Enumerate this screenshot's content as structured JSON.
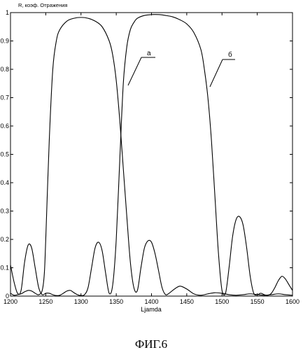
{
  "figure": {
    "caption": "ФИГ.6"
  },
  "chart_data": {
    "type": "line",
    "title": "",
    "ylabel": "R, коэф. Отражения",
    "xlabel": "Ljamda",
    "xlim": [
      1200,
      1600
    ],
    "ylim": [
      0,
      1
    ],
    "x_ticks": [
      "1200",
      "1250",
      "1300",
      "1350",
      "1400",
      "1450",
      "1500",
      "1550",
      "1600"
    ],
    "y_ticks": [
      "0",
      "0.1",
      "0.2",
      "0.3",
      "0.4",
      "0.5",
      "0.6",
      "0.7",
      "0.8",
      "0.9",
      "1"
    ],
    "grid": false,
    "series": [
      {
        "name": "а",
        "x": [
          1200,
          1205,
          1210,
          1215,
          1220,
          1225,
          1230,
          1235,
          1240,
          1245,
          1248,
          1250,
          1255,
          1260,
          1265,
          1270,
          1280,
          1290,
          1300,
          1310,
          1320,
          1330,
          1340,
          1345,
          1350,
          1355,
          1360,
          1365,
          1370,
          1375,
          1380,
          1385,
          1390,
          1395,
          1400,
          1405,
          1410,
          1415,
          1420,
          1425,
          1430,
          1440,
          1450,
          1460,
          1470,
          1480,
          1490,
          1500,
          1510,
          1520,
          1530,
          1540,
          1550,
          1560,
          1570,
          1580,
          1590,
          1600
        ],
        "values": [
          0.01,
          0.003,
          0.005,
          0.008,
          0.015,
          0.02,
          0.018,
          0.01,
          0.005,
          0.02,
          0.08,
          0.2,
          0.55,
          0.8,
          0.9,
          0.94,
          0.97,
          0.98,
          0.983,
          0.98,
          0.97,
          0.95,
          0.9,
          0.85,
          0.76,
          0.62,
          0.45,
          0.28,
          0.12,
          0.03,
          0.02,
          0.1,
          0.17,
          0.195,
          0.19,
          0.15,
          0.09,
          0.03,
          0.005,
          0.01,
          0.02,
          0.035,
          0.025,
          0.008,
          0.003,
          0.008,
          0.012,
          0.01,
          0.005,
          0.003,
          0.005,
          0.008,
          0.005,
          0.003,
          0.005,
          0.008,
          0.005,
          0.003
        ]
      },
      {
        "name": "б",
        "x": [
          1200,
          1205,
          1210,
          1215,
          1220,
          1225,
          1230,
          1235,
          1240,
          1245,
          1250,
          1255,
          1260,
          1265,
          1270,
          1275,
          1280,
          1285,
          1290,
          1295,
          1300,
          1305,
          1310,
          1315,
          1320,
          1325,
          1330,
          1335,
          1340,
          1345,
          1350,
          1355,
          1360,
          1365,
          1370,
          1375,
          1380,
          1390,
          1400,
          1410,
          1420,
          1430,
          1440,
          1450,
          1460,
          1470,
          1475,
          1480,
          1485,
          1490,
          1495,
          1500,
          1505,
          1510,
          1515,
          1520,
          1525,
          1530,
          1535,
          1540,
          1545,
          1550,
          1555,
          1560,
          1565,
          1570,
          1575,
          1580,
          1585,
          1590,
          1595,
          1600
        ],
        "values": [
          0.11,
          0.05,
          0.01,
          0.02,
          0.12,
          0.18,
          0.17,
          0.1,
          0.03,
          0.005,
          0.01,
          0.01,
          0.005,
          0.002,
          0.003,
          0.01,
          0.018,
          0.02,
          0.012,
          0.005,
          0.002,
          0.005,
          0.03,
          0.1,
          0.17,
          0.19,
          0.16,
          0.08,
          0.01,
          0.04,
          0.2,
          0.48,
          0.75,
          0.88,
          0.94,
          0.965,
          0.98,
          0.99,
          0.993,
          0.993,
          0.99,
          0.985,
          0.975,
          0.96,
          0.93,
          0.87,
          0.8,
          0.7,
          0.55,
          0.35,
          0.15,
          0.02,
          0.01,
          0.1,
          0.21,
          0.27,
          0.28,
          0.25,
          0.17,
          0.07,
          0.01,
          0.005,
          0.01,
          0.005,
          0.003,
          0.01,
          0.03,
          0.055,
          0.07,
          0.06,
          0.04,
          0.02
        ]
      }
    ]
  }
}
